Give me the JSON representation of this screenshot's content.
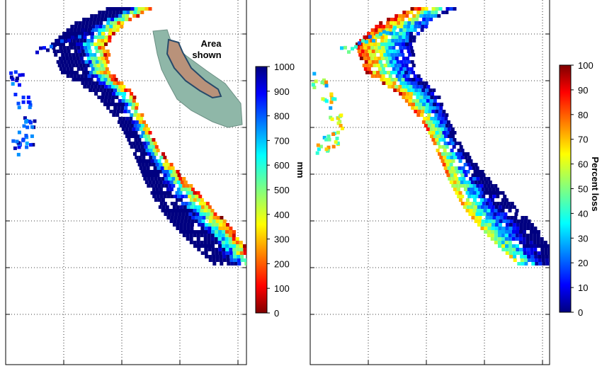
{
  "chart_data": [
    {
      "type": "heatmap",
      "title": "",
      "colorbar": {
        "label": "mm",
        "min": 0,
        "max": 1000,
        "ticks": [
          0,
          100,
          200,
          300,
          400,
          500,
          600,
          700,
          800,
          900,
          1000
        ]
      },
      "inset": {
        "label_line1": "Area",
        "label_line2": "shown"
      },
      "grid": true
    },
    {
      "type": "heatmap",
      "title": "",
      "colorbar": {
        "label": "Percent loss",
        "min": 0,
        "max": 100,
        "ticks": [
          0,
          10,
          20,
          30,
          40,
          50,
          60,
          70,
          80,
          90,
          100
        ]
      },
      "grid": true
    }
  ],
  "colors": {
    "jet_dark_red": "#7f0000",
    "jet_red": "#ff0000",
    "jet_orange": "#ff8000",
    "jet_yellow": "#ffff00",
    "jet_cyan": "#00ffff",
    "jet_blue": "#0000ff",
    "jet_dark_blue": "#00007f"
  }
}
